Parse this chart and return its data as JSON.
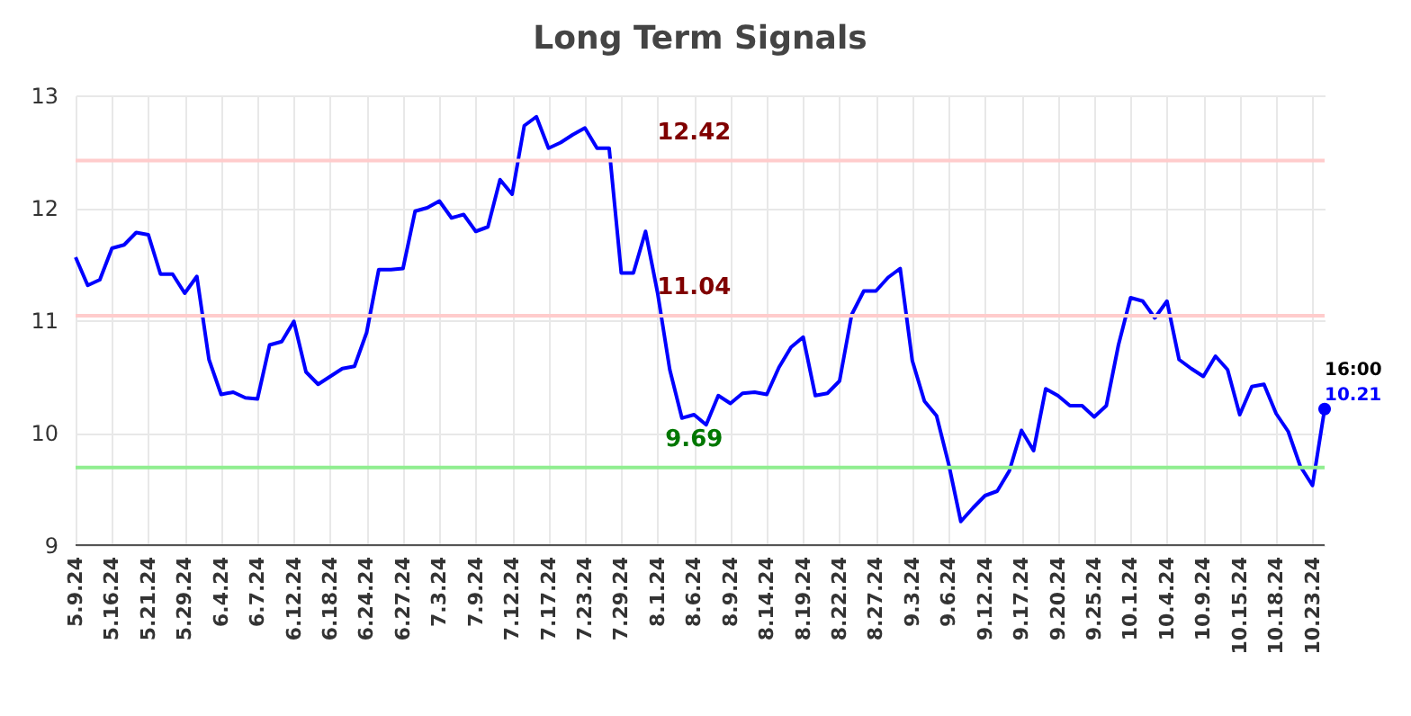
{
  "chart_data": {
    "type": "line",
    "title": "Long Term Signals",
    "categories": [
      "5.9.24",
      null,
      null,
      "5.16.24",
      null,
      null,
      "5.21.24",
      null,
      null,
      "5.29.24",
      null,
      null,
      "6.4.24",
      null,
      null,
      "6.7.24",
      null,
      null,
      "6.12.24",
      null,
      null,
      "6.18.24",
      null,
      null,
      "6.24.24",
      null,
      null,
      "6.27.24",
      null,
      null,
      "7.3.24",
      null,
      null,
      "7.9.24",
      null,
      null,
      "7.12.24",
      null,
      null,
      "7.17.24",
      null,
      null,
      "7.23.24",
      null,
      null,
      "7.29.24",
      null,
      null,
      "8.1.24",
      null,
      null,
      "8.6.24",
      null,
      null,
      "8.9.24",
      null,
      null,
      "8.14.24",
      null,
      null,
      "8.19.24",
      null,
      null,
      "8.22.24",
      null,
      null,
      "8.27.24",
      null,
      null,
      "9.3.24",
      null,
      null,
      "9.6.24",
      null,
      null,
      "9.12.24",
      null,
      null,
      "9.17.24",
      null,
      null,
      "9.20.24",
      null,
      null,
      "9.25.24",
      null,
      null,
      "10.1.24",
      null,
      null,
      "10.4.24",
      null,
      null,
      "10.9.24",
      null,
      null,
      "10.15.24",
      null,
      null,
      "10.18.24",
      null,
      null,
      "10.23.24",
      null
    ],
    "series": [
      {
        "color": "#0000ff",
        "values": [
          11.56,
          11.31,
          11.36,
          11.64,
          11.67,
          11.78,
          11.76,
          11.41,
          11.41,
          11.24,
          11.39,
          10.65,
          10.34,
          10.36,
          10.31,
          10.3,
          10.78,
          10.81,
          10.99,
          10.54,
          10.43,
          10.5,
          10.57,
          10.59,
          10.89,
          11.45,
          11.45,
          11.46,
          11.97,
          12.0,
          12.06,
          11.91,
          11.94,
          11.79,
          11.83,
          12.25,
          12.12,
          12.73,
          12.81,
          12.53,
          12.58,
          12.65,
          12.71,
          12.53,
          12.53,
          11.42,
          11.42,
          11.79,
          11.24,
          10.56,
          10.13,
          10.16,
          10.07,
          10.33,
          10.26,
          10.35,
          10.36,
          10.34,
          10.58,
          10.76,
          10.85,
          10.33,
          10.35,
          10.46,
          11.05,
          11.26,
          11.26,
          11.38,
          11.46,
          10.64,
          10.28,
          10.15,
          9.72,
          9.21,
          9.33,
          9.44,
          9.48,
          9.66,
          10.02,
          9.84,
          10.39,
          10.33,
          10.24,
          10.24,
          10.14,
          10.24,
          10.78,
          11.2,
          11.17,
          11.02,
          11.17,
          10.65,
          10.57,
          10.5,
          10.68,
          10.56,
          10.16,
          10.41,
          10.43,
          10.17,
          10.01,
          9.7,
          9.53,
          10.21
        ],
        "value_labels": [
          null,
          null,
          null,
          null,
          null,
          null,
          null,
          null,
          null,
          null,
          null,
          null,
          null,
          null,
          null,
          null,
          null,
          null,
          null,
          null,
          null,
          null,
          null,
          null,
          null,
          null,
          null,
          null,
          null,
          null,
          null,
          null,
          null,
          null,
          null,
          null,
          null,
          null,
          null,
          null,
          null,
          null,
          null,
          null,
          null,
          null,
          null,
          null,
          null,
          null,
          null,
          null,
          null,
          null,
          null,
          null,
          null,
          null,
          null,
          null,
          null,
          null,
          null,
          null,
          null,
          null,
          null,
          null,
          null,
          null,
          null,
          null,
          null,
          null,
          null,
          null,
          null,
          null,
          null,
          null,
          null,
          null,
          null,
          null,
          null,
          null,
          null,
          null,
          null,
          null,
          null,
          null,
          null,
          null,
          null,
          null,
          null,
          null,
          null,
          null,
          null,
          null,
          null,
          "10.21"
        ]
      }
    ],
    "annotations": [
      "16:00"
    ],
    "ylim": [
      9,
      13
    ],
    "yticks": [
      9,
      10,
      11,
      12,
      13
    ],
    "grid": true,
    "ref_lines": [
      {
        "axis": "y",
        "value": 12.42,
        "label": "12.42",
        "color": "#ffcccc"
      },
      {
        "axis": "y",
        "value": 11.04,
        "label": "11.04",
        "color": "#ffcccc"
      },
      {
        "axis": "y",
        "value": 9.69,
        "label": "9.69",
        "color": "#90ee90"
      }
    ]
  }
}
